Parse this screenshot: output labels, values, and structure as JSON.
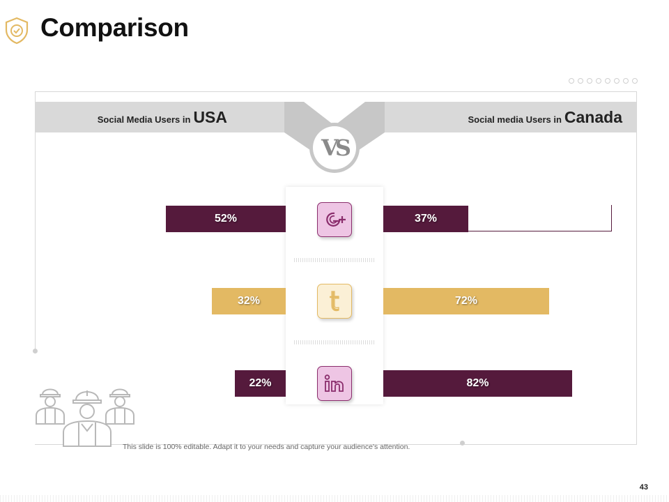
{
  "header": {
    "title": "Comparison",
    "badge_icon": "shield-check-icon"
  },
  "pagination_dots_count": 8,
  "left_panel": {
    "label_small": "Social Media Users in",
    "label_big": "USA"
  },
  "right_panel": {
    "label_small": "Social media Users in",
    "label_big": "Canada"
  },
  "vs_label": "VS",
  "rows": [
    {
      "platform": "Google+",
      "icon": "google-plus-icon",
      "usa_value": 52,
      "usa_label": "52%",
      "canada_value": 37,
      "canada_label": "37%",
      "color": "#551a3c"
    },
    {
      "platform": "Tumblr",
      "icon": "tumblr-icon",
      "usa_value": 32,
      "usa_label": "32%",
      "canada_value": 72,
      "canada_label": "72%",
      "color": "#e3b963"
    },
    {
      "platform": "LinkedIn",
      "icon": "linkedin-icon",
      "usa_value": 22,
      "usa_label": "22%",
      "canada_value": 82,
      "canada_label": "82%",
      "color": "#551a3c"
    }
  ],
  "icon_tile_colors": {
    "purple_bg": "#eec5e4",
    "purple_border": "#8a2d6c",
    "gold_bg": "#fbf0d6",
    "gold_border": "#e3b963"
  },
  "workers_icon": "construction-workers-icon",
  "footer": {
    "text": "This slide is 100% editable. Adapt it to your needs and capture your audience's attention.",
    "page_number": "43"
  }
}
